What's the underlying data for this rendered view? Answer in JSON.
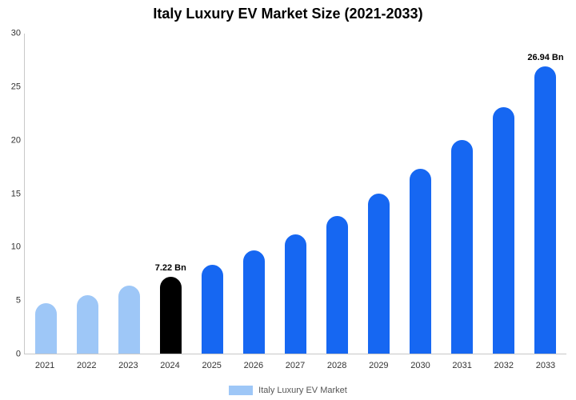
{
  "title": "Italy Luxury EV Market Size (2021-2033)",
  "legend": {
    "label": "Italy Luxury EV Market",
    "swatch_color": "#9ec7f7"
  },
  "colors": {
    "light_blue": "#9ec7f7",
    "blue": "#1667f2",
    "black": "#000000",
    "axis_line": "#c8c8c8"
  },
  "chart_data": {
    "type": "bar",
    "title": "Italy Luxury EV Market Size (2021-2033)",
    "categories": [
      "2021",
      "2022",
      "2023",
      "2024",
      "2025",
      "2026",
      "2027",
      "2028",
      "2029",
      "2030",
      "2031",
      "2032",
      "2033"
    ],
    "values": [
      4.7,
      5.5,
      6.4,
      7.22,
      8.3,
      9.7,
      11.2,
      12.9,
      15.0,
      17.3,
      20.0,
      23.1,
      26.94
    ],
    "bar_colors": [
      "#9ec7f7",
      "#9ec7f7",
      "#9ec7f7",
      "#000000",
      "#1667f2",
      "#1667f2",
      "#1667f2",
      "#1667f2",
      "#1667f2",
      "#1667f2",
      "#1667f2",
      "#1667f2",
      "#1667f2"
    ],
    "annotations": [
      {
        "category": "2024",
        "text": "7.22 Bn"
      },
      {
        "category": "2033",
        "text": "26.94 Bn"
      }
    ],
    "xlabel": "",
    "ylabel": "",
    "ylim": [
      0,
      30
    ],
    "yticks": [
      0,
      5,
      10,
      15,
      20,
      25,
      30
    ],
    "grid": false,
    "legend_entries": [
      "Italy Luxury EV Market"
    ],
    "legend_position": "bottom"
  }
}
